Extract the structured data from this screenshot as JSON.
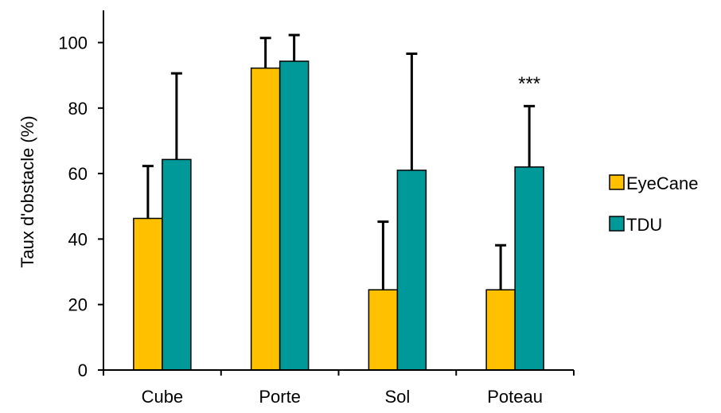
{
  "chart_data": {
    "type": "bar",
    "title": "",
    "xlabel": "",
    "ylabel": "Taux d'obstacle (%)",
    "ylim": [
      0,
      110
    ],
    "yticks": [
      0,
      20,
      40,
      60,
      80,
      100
    ],
    "categories": [
      "Cube",
      "Porte",
      "Sol",
      "Poteau"
    ],
    "series": [
      {
        "name": "EyeCane",
        "color": "#FFC000",
        "values": [
          46.3,
          92.2,
          24.5,
          24.5
        ],
        "errors": [
          16.0,
          9.2,
          20.8,
          13.6
        ]
      },
      {
        "name": "TDU",
        "color": "#009999",
        "values": [
          64.3,
          94.3,
          61.0,
          62.0
        ],
        "errors": [
          26.3,
          8.0,
          35.6,
          18.6
        ]
      }
    ],
    "annotations": [
      {
        "category": "Poteau",
        "text": "***"
      }
    ],
    "legend_position": "right",
    "grid": false
  }
}
